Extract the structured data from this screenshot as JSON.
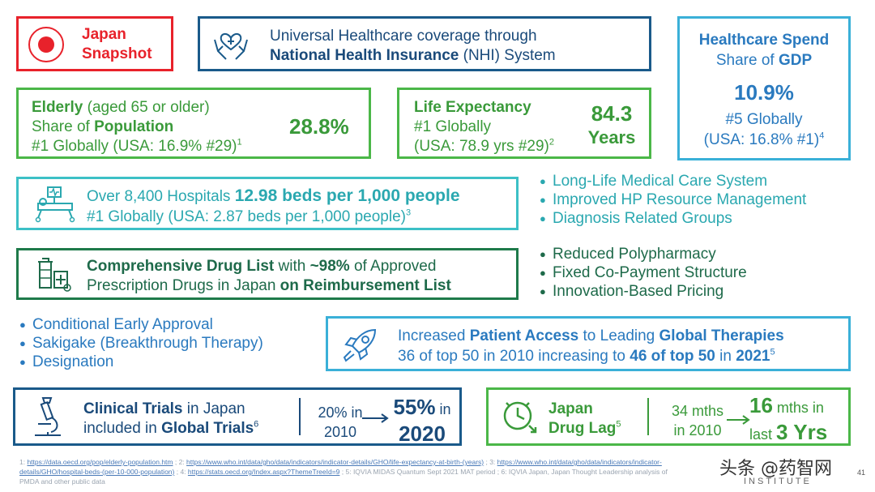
{
  "colors": {
    "red": "#e8222b",
    "navy": "#1a5a8a",
    "cyan": "#3ab0d8",
    "green": "#4bb748",
    "teal": "#3cc0c6"
  },
  "snapshot": {
    "line1": "Japan",
    "line2": "Snapshot"
  },
  "nhi": {
    "line1": "Universal Healthcare coverage through",
    "strong": "National Health Insurance",
    "rest": " (NHI) System"
  },
  "spend": {
    "title": "Healthcare Spend",
    "share": "Share of ",
    "gdp": "GDP",
    "value": "10.9%",
    "rank": "#5 Globally",
    "usa": "(USA: 16.8% #1)",
    "note": "4"
  },
  "elderly": {
    "strong1": "Elderly",
    "rest1": " (aged 65 or older)",
    "share": "Share of ",
    "strong2": "Population",
    "line3": "#1 Globally (USA: 16.9% #29)",
    "note": "1",
    "value": "28.8%"
  },
  "life": {
    "title": "Life Expectancy",
    "rank": "#1 Globally",
    "usa": "(USA: 78.9 yrs #29)",
    "note": "2",
    "value": "84.3",
    "unit": "Years"
  },
  "hospitals": {
    "pre": "Over 8,400 Hospitals ",
    "strong": "12.98 beds per 1,000 people",
    "line2": "#1 Globally (USA: 2.87 beds per 1,000 people)",
    "note": "3"
  },
  "bullets1": [
    "Long-Life Medical Care System",
    "Improved HP Resource Management",
    "Diagnosis Related Groups"
  ],
  "drug": {
    "strong1": "Comprehensive Drug List",
    "mid1": " with ",
    "strong2": "~98%",
    "mid2": " of Approved",
    "line2": "Prescription Drugs in Japan ",
    "strong3": "on Reimbursement List"
  },
  "bullets2": [
    "Reduced Polypharmacy",
    "Fixed Co-Payment Structure",
    "Innovation-Based Pricing"
  ],
  "bullets3": [
    "Conditional Early Approval",
    "Sakigake (Breakthrough Therapy)"
  ],
  "bullets3_cont": "Designation",
  "access": {
    "pre": "Increased ",
    "strong1": "Patient Access",
    "mid": " to Leading ",
    "strong2": "Global Therapies",
    "line2": "36 of top 50 in 2010 increasing to ",
    "strong3": "46 of top 50",
    "mid2": " in ",
    "strong4": "2021",
    "note": "5"
  },
  "trials": {
    "strong1": "Clinical Trials",
    "rest1": " in Japan",
    "line2": "included in ",
    "strong2": "Global Trials",
    "note": "6",
    "from_val": "20% in",
    "from_year": "2010",
    "to_val": "55%",
    "to_in": " in",
    "to_year": "2020"
  },
  "lag": {
    "line1": "Japan",
    "line2": "Drug Lag",
    "note": "5",
    "from_val": "34 mths",
    "from_year": "in 2010",
    "to_num": "16",
    "to_unit": " mths in",
    "to_pre": "last ",
    "to_strong": "3 Yrs"
  },
  "footnotes": {
    "n1": "1: ",
    "l1": "https://data.oecd.org/pop/elderly-population.htm",
    "n2": " ; 2: ",
    "l2": "https://www.who.int/data/gho/data/indicators/indicator-details/GHO/life-expectancy-at-birth-(years)",
    "n3": " ; 3: ",
    "l3a": "https://www.who.int/data/gho/data/indicators/indicator-",
    "l3b": "details/GHO/hospital-beds-(per-10-000-population)",
    "n4": " ; 4: ",
    "l4": "https://stats.oecd.org/Index.aspx?ThemeTreeId=9",
    "rest": " ; 5: IQVIA MIDAS Quantum Sept 2021 MAT period ; 6: IQVIA Japan, Japan Thought Leadership analysis of",
    "rest2": "PMDA and other public data"
  },
  "watermark": "头条 @药智网",
  "institute": "INSTITUTE",
  "page": "41"
}
